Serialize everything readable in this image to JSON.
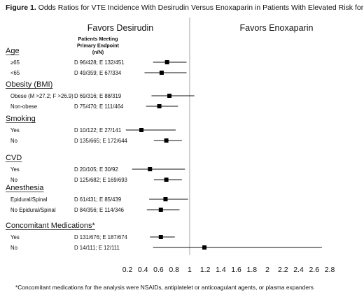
{
  "figure": {
    "label": "Figure 1.",
    "title": "Odds Ratios for VTE Incidence With Desirudin Versus Enoxaparin in Patients With Elevated Risk for VTE",
    "footnote": "*Concomitant medications for the analysis were NSAIDs, antiplatelet or anticoagulant agents, or plasma expanders"
  },
  "chart_data": {
    "type": "forest",
    "left_label": "Favors Desirudin",
    "right_label": "Favors Enoxaparin",
    "column_header": [
      "Patients Meeting",
      "Primary Endpoint",
      "(n/N)"
    ],
    "reference_line": 1,
    "xlim": [
      0,
      2.8
    ],
    "xticks": [
      0.2,
      0.4,
      0.6,
      0.8,
      1,
      1.2,
      1.4,
      1.6,
      1.8,
      2,
      2.2,
      2.4,
      2.6,
      2.8
    ],
    "groups": [
      {
        "name": "Age",
        "rows": [
          {
            "label": "≥65",
            "counts": "D 96/428; E 132/451",
            "or": 0.71,
            "ci": [
              0.53,
              0.96
            ]
          },
          {
            "label": "<65",
            "counts": "D 49/359; E 67/334",
            "or": 0.64,
            "ci": [
              0.42,
              0.96
            ]
          }
        ]
      },
      {
        "name": "Obesity (BMI)",
        "rows": [
          {
            "label": "Obese (M >27.2; F >26.9)",
            "counts": "D 69/316; E 88/319",
            "or": 0.74,
            "ci": [
              0.51,
              1.06
            ]
          },
          {
            "label": "Non-obese",
            "counts": "D 75/470; E 111/464",
            "or": 0.61,
            "ci": [
              0.44,
              0.85
            ]
          }
        ]
      },
      {
        "name": "Smoking",
        "rows": [
          {
            "label": "Yes",
            "counts": "D 10/122; E 27/141",
            "or": 0.38,
            "ci": [
              0.18,
              0.82
            ]
          },
          {
            "label": "No",
            "counts": "D 135/665; E 172/644",
            "or": 0.7,
            "ci": [
              0.54,
              0.9
            ]
          }
        ]
      },
      {
        "name": "CVD",
        "rows": [
          {
            "label": "Yes",
            "counts": "D 20/105; E 30/92",
            "or": 0.49,
            "ci": [
              0.26,
              0.94
            ]
          },
          {
            "label": "No",
            "counts": "D 125/682; E 169/693",
            "or": 0.7,
            "ci": [
              0.54,
              0.9
            ]
          }
        ]
      },
      {
        "name": "Anesthesia",
        "rows": [
          {
            "label": "Epidural/Spinal",
            "counts": "D 61/431; E 85/439",
            "or": 0.69,
            "ci": [
              0.48,
              0.98
            ]
          },
          {
            "label": "No Epidural/Spinal",
            "counts": "D 84/356; E 114/346",
            "or": 0.63,
            "ci": [
              0.45,
              0.87
            ]
          }
        ]
      },
      {
        "name": "Concomitant Medications*",
        "rows": [
          {
            "label": "Yes",
            "counts": "D 131/676; E 187/674",
            "or": 0.63,
            "ci": [
              0.49,
              0.81
            ]
          },
          {
            "label": "No",
            "counts": "D 14/111; E 12/111",
            "or": 1.19,
            "ci": [
              0.53,
              2.7
            ]
          }
        ]
      }
    ]
  }
}
